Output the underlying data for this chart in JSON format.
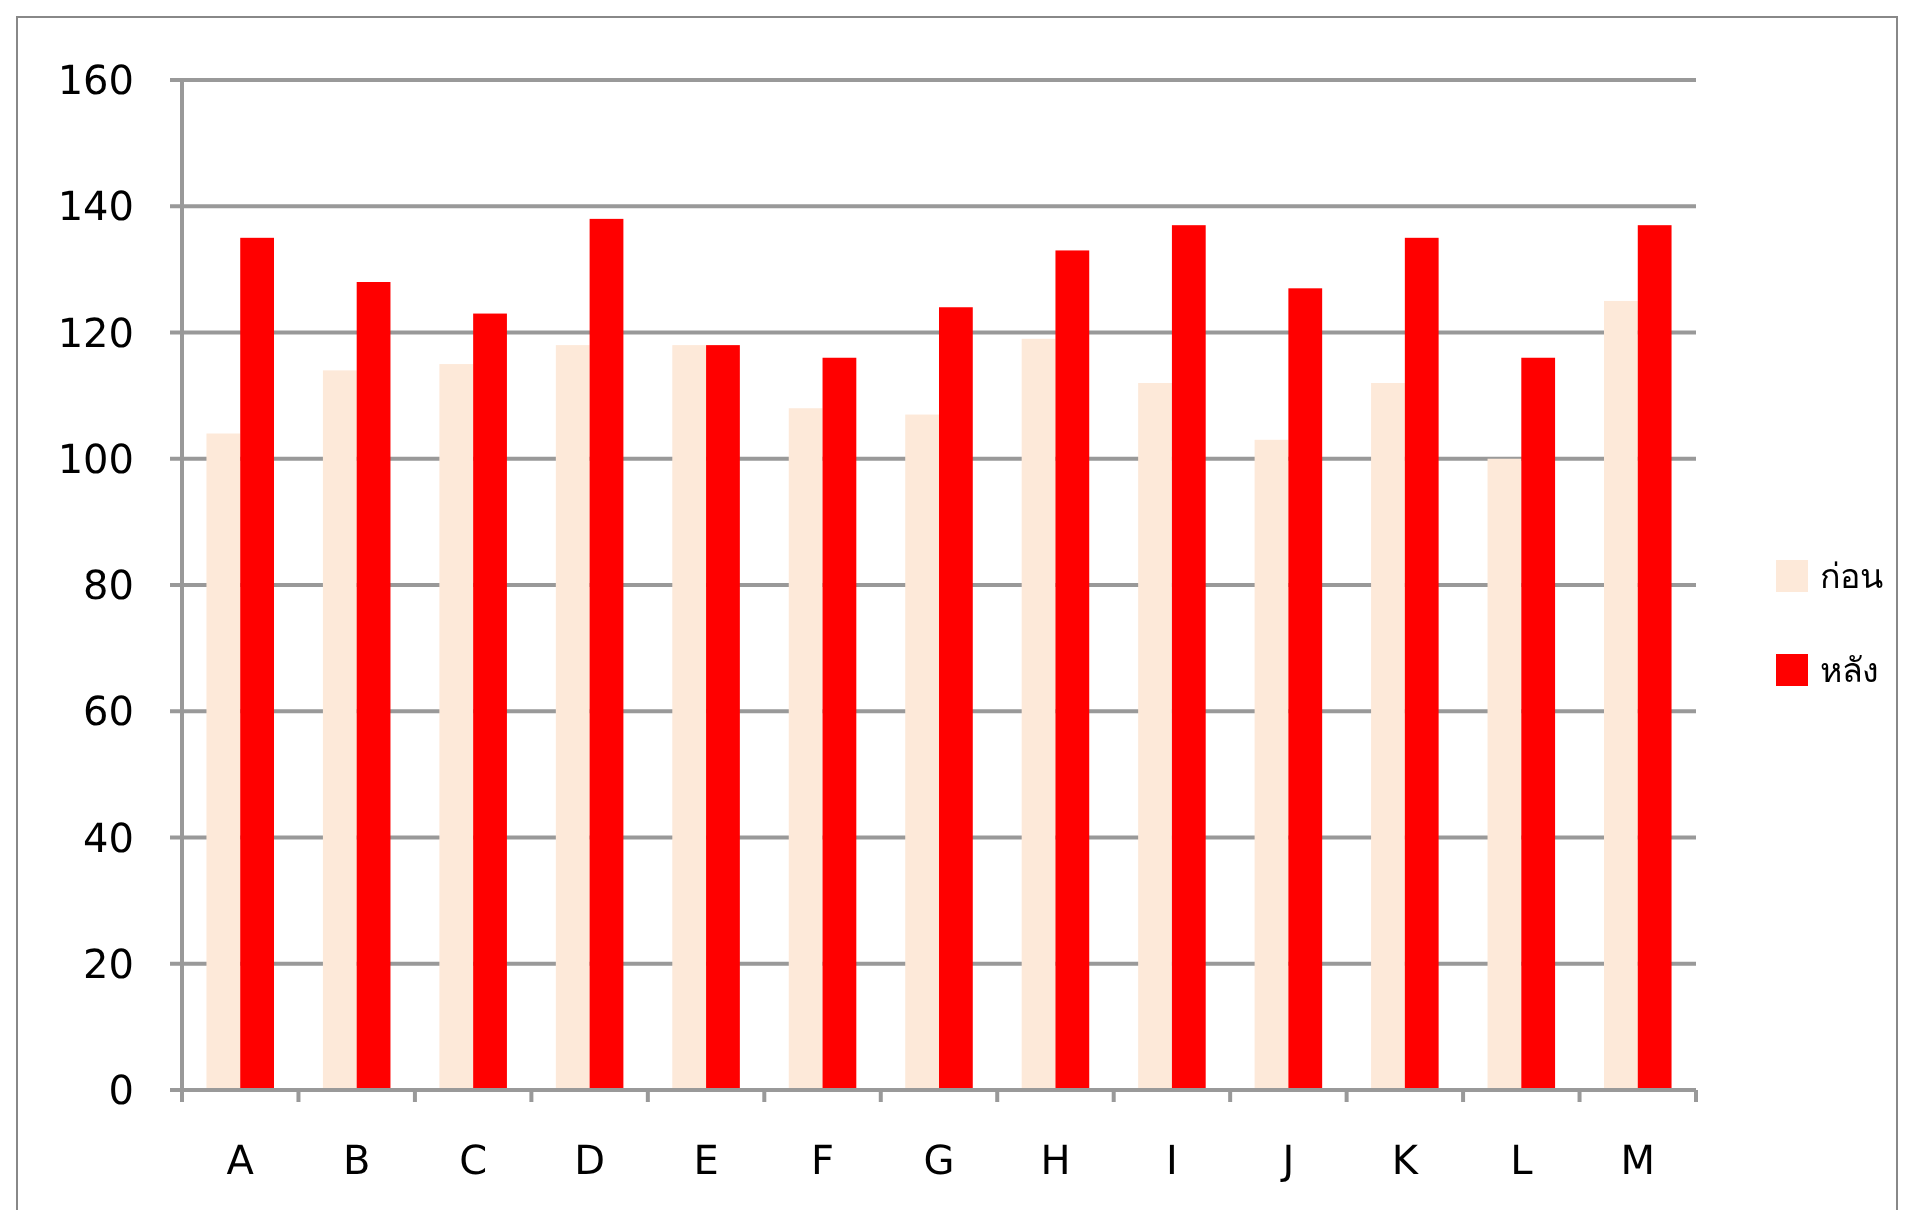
{
  "chart_data": {
    "type": "bar",
    "categories": [
      "A",
      "B",
      "C",
      "D",
      "E",
      "F",
      "G",
      "H",
      "I",
      "J",
      "K",
      "L",
      "M"
    ],
    "series": [
      {
        "name": "ก่อน",
        "color": "#fde9d9",
        "values": [
          104,
          114,
          115,
          118,
          118,
          108,
          107,
          119,
          112,
          103,
          112,
          100,
          125
        ]
      },
      {
        "name": "หลัง",
        "color": "#ff0000",
        "values": [
          135,
          128,
          123,
          138,
          118,
          116,
          124,
          133,
          137,
          127,
          135,
          116,
          137
        ]
      }
    ],
    "ylim": [
      0,
      160
    ],
    "yticks": [
      0,
      20,
      40,
      60,
      80,
      100,
      120,
      140,
      160
    ],
    "grid": "y",
    "legend": "right"
  }
}
